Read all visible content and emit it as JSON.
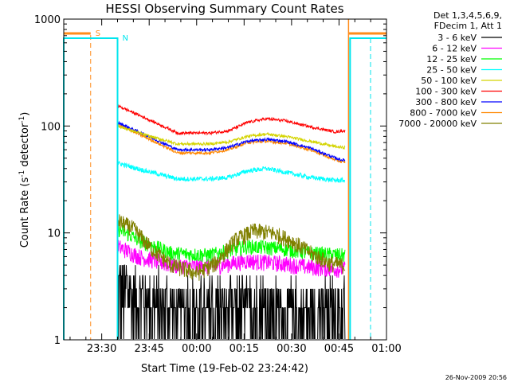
{
  "chart_data": {
    "type": "line",
    "title": "HESSI Observing Summary Count Rates",
    "xlabel": "Start Time (19-Feb-02 23:24:42)",
    "ylabel": "Count Rate (s",
    "ylabel_sup1": "-1",
    "ylabel_mid": " detector",
    "ylabel_sup2": "-1",
    "ylabel_end": ")",
    "yscale": "log",
    "xlim_min": [
      -6,
      96
    ],
    "ylim": [
      1,
      1000
    ],
    "x_ticks": [
      {
        "min": 6,
        "label": "23:30"
      },
      {
        "min": 21,
        "label": "23:45"
      },
      {
        "min": 36,
        "label": "00:00"
      },
      {
        "min": 51,
        "label": "00:15"
      },
      {
        "min": 66,
        "label": "00:30"
      },
      {
        "min": 81,
        "label": "00:45"
      },
      {
        "min": 96,
        "label": "01:00"
      }
    ],
    "y_ticks": [
      {
        "value": 1,
        "label": "1"
      },
      {
        "value": 10,
        "label": "10"
      },
      {
        "value": 100,
        "label": "100"
      },
      {
        "value": 1000,
        "label": "1000"
      }
    ],
    "markers": [
      {
        "label": "S",
        "min": 2.5,
        "color": "#ff8c1a"
      },
      {
        "label": "N",
        "min": 11,
        "color": "#00e5ee"
      }
    ],
    "legend_header": [
      "Det 1,3,4,5,6,9,",
      "FDecim 1, Att 1"
    ],
    "data_start_min": 11,
    "data_end_min": 83,
    "series": [
      {
        "name": "3 - 6 keV",
        "color": "#000000",
        "knots": [
          [
            11,
            3
          ],
          [
            20,
            2.2
          ],
          [
            30,
            1.6
          ],
          [
            40,
            1.6
          ],
          [
            52,
            1.8
          ],
          [
            62,
            1.6
          ],
          [
            72,
            1.5
          ],
          [
            82,
            1.5
          ]
        ]
      },
      {
        "name": "6 - 12 keV",
        "color": "#ff00ff",
        "knots": [
          [
            11,
            7.5
          ],
          [
            18,
            6
          ],
          [
            28,
            5
          ],
          [
            40,
            4.8
          ],
          [
            52,
            5.5
          ],
          [
            62,
            5.2
          ],
          [
            72,
            4.8
          ],
          [
            82,
            4.6
          ]
        ]
      },
      {
        "name": "12 - 25 keV",
        "color": "#00ff00",
        "knots": [
          [
            11,
            11
          ],
          [
            18,
            8.5
          ],
          [
            28,
            6.5
          ],
          [
            40,
            6.2
          ],
          [
            52,
            7.5
          ],
          [
            62,
            7.2
          ],
          [
            72,
            6.5
          ],
          [
            82,
            6.2
          ]
        ]
      },
      {
        "name": "25 - 50 keV",
        "color": "#00ffff",
        "knots": [
          [
            11,
            45
          ],
          [
            20,
            38
          ],
          [
            30,
            32
          ],
          [
            40,
            32
          ],
          [
            46,
            33
          ],
          [
            52,
            38
          ],
          [
            58,
            40
          ],
          [
            64,
            37
          ],
          [
            72,
            33
          ],
          [
            80,
            31
          ],
          [
            82,
            31
          ]
        ]
      },
      {
        "name": "50 - 100 keV",
        "color": "#d4d400",
        "knots": [
          [
            11,
            100
          ],
          [
            20,
            82
          ],
          [
            30,
            68
          ],
          [
            40,
            68
          ],
          [
            46,
            71
          ],
          [
            52,
            80
          ],
          [
            58,
            84
          ],
          [
            64,
            80
          ],
          [
            72,
            72
          ],
          [
            80,
            64
          ],
          [
            82,
            63
          ]
        ]
      },
      {
        "name": "100 - 300 keV",
        "color": "#ff0000",
        "knots": [
          [
            11,
            155
          ],
          [
            20,
            118
          ],
          [
            30,
            86
          ],
          [
            40,
            86
          ],
          [
            46,
            90
          ],
          [
            52,
            108
          ],
          [
            58,
            117
          ],
          [
            64,
            112
          ],
          [
            72,
            98
          ],
          [
            80,
            88
          ],
          [
            82,
            90
          ]
        ]
      },
      {
        "name": "300 - 800 keV",
        "color": "#0000ff",
        "knots": [
          [
            11,
            108
          ],
          [
            20,
            82
          ],
          [
            30,
            60
          ],
          [
            40,
            60
          ],
          [
            46,
            63
          ],
          [
            52,
            72
          ],
          [
            58,
            75
          ],
          [
            64,
            72
          ],
          [
            72,
            62
          ],
          [
            80,
            50
          ],
          [
            82,
            48
          ]
        ]
      },
      {
        "name": "800 - 7000 keV",
        "color": "#ff8800",
        "knots": [
          [
            11,
            104
          ],
          [
            20,
            78
          ],
          [
            30,
            56
          ],
          [
            40,
            56
          ],
          [
            46,
            60
          ],
          [
            52,
            70
          ],
          [
            58,
            72
          ],
          [
            64,
            69
          ],
          [
            72,
            60
          ],
          [
            80,
            48
          ],
          [
            82,
            46
          ]
        ]
      },
      {
        "name": "7000 - 20000 keV",
        "color": "#808000",
        "knots": [
          [
            11,
            13
          ],
          [
            16,
            11
          ],
          [
            22,
            7
          ],
          [
            28,
            5
          ],
          [
            36,
            4.2
          ],
          [
            42,
            5.2
          ],
          [
            48,
            8.5
          ],
          [
            54,
            10.5
          ],
          [
            60,
            10
          ],
          [
            66,
            8.5
          ],
          [
            72,
            6.5
          ],
          [
            78,
            5.2
          ],
          [
            82,
            5
          ]
        ]
      }
    ],
    "footer_date": "26-Nov-2009 20:56"
  }
}
